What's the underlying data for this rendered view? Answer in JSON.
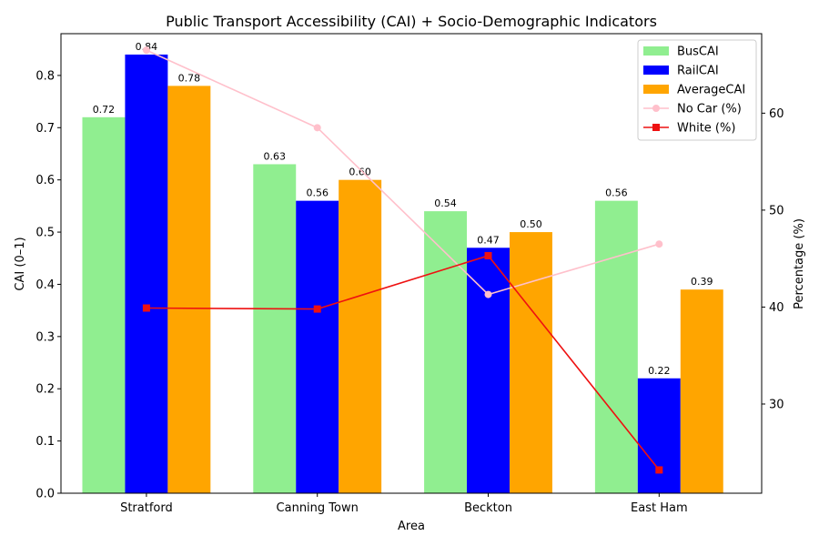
{
  "chart_data": {
    "type": "bar",
    "title": "Public Transport Accessibility (CAI) + Socio-Demographic Indicators",
    "xlabel": "Area",
    "ylabel": "CAI (0–1)",
    "y2label": "Percentage (%)",
    "categories": [
      "Stratford",
      "Canning Town",
      "Beckton",
      "East Ham"
    ],
    "ylim": [
      0,
      0.88
    ],
    "yticks": [
      0.0,
      0.1,
      0.2,
      0.3,
      0.4,
      0.5,
      0.6,
      0.7,
      0.8
    ],
    "y2lim": [
      20.8,
      68.2
    ],
    "y2ticks": [
      30,
      40,
      50,
      60
    ],
    "legend_position": "top-right",
    "grid": false,
    "series": [
      {
        "name": "BusCAI",
        "kind": "bar",
        "color": "#90ee90",
        "values": [
          0.72,
          0.63,
          0.54,
          0.56
        ],
        "labels": [
          "0.72",
          "0.63",
          "0.54",
          "0.56"
        ]
      },
      {
        "name": "RailCAI",
        "kind": "bar",
        "color": "#0000ff",
        "values": [
          0.84,
          0.56,
          0.47,
          0.22
        ],
        "labels": [
          "0.84",
          "0.56",
          "0.47",
          "0.22"
        ]
      },
      {
        "name": "AverageCAI",
        "kind": "bar",
        "color": "#ffa500",
        "values": [
          0.78,
          0.6,
          0.5,
          0.39
        ],
        "labels": [
          "0.78",
          "0.60",
          "0.50",
          "0.39"
        ]
      }
    ],
    "line_series": [
      {
        "name": "No Car (%)",
        "kind": "line",
        "axis": "right",
        "color": "#ffc0cb",
        "marker": "circle",
        "values": [
          66.5,
          58.5,
          41.3,
          46.5
        ]
      },
      {
        "name": "White (%)",
        "kind": "line",
        "axis": "right",
        "color": "#ee1111",
        "marker": "square",
        "values": [
          39.9,
          39.8,
          45.3,
          23.2
        ]
      }
    ]
  }
}
